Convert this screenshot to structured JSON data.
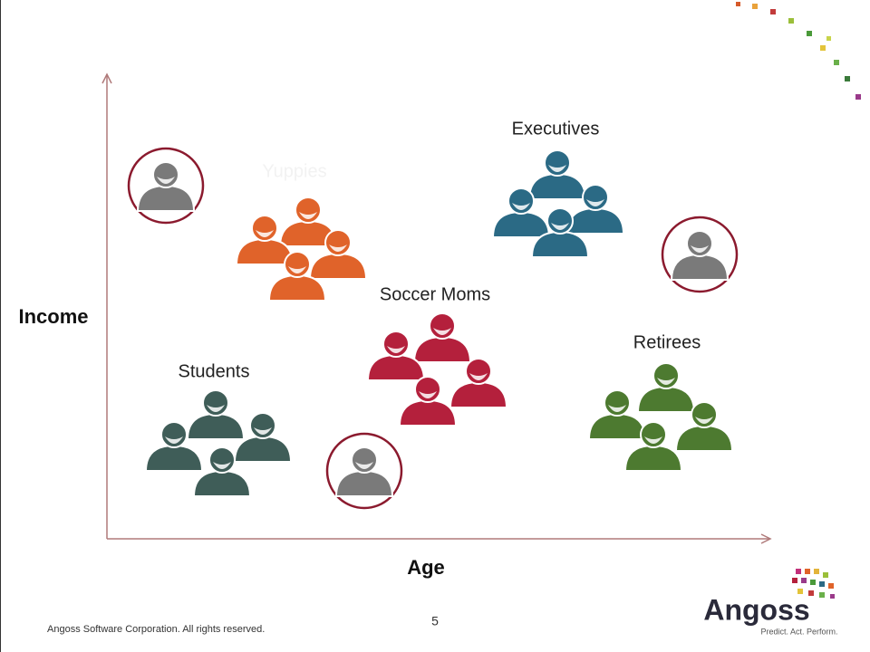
{
  "axes": {
    "y_label": "Income",
    "x_label": "Age"
  },
  "clusters": [
    {
      "label": "Executives",
      "color": "#2b6a85"
    },
    {
      "label": "Yuppies",
      "color": "#e0632a"
    },
    {
      "label": "Soccer Moms",
      "color": "#b4203c"
    },
    {
      "label": "Students",
      "color": "#3f5d58"
    },
    {
      "label": "Retirees",
      "color": "#4d7a30"
    }
  ],
  "outliers": {
    "color": "#7a7a7a",
    "ring_color": "#8b1a2e"
  },
  "footer": {
    "copyright": "Angoss Software Corporation. All rights reserved.",
    "page_number": "5"
  },
  "logo": {
    "name": "Angoss",
    "tagline": "Predict. Act. Perform."
  }
}
